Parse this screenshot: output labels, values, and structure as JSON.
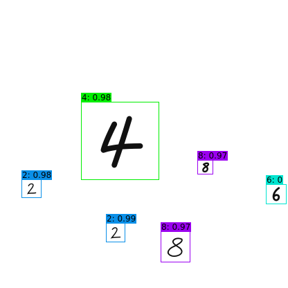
{
  "detections": [
    {
      "class": "4",
      "score": "0.98",
      "label": "4: 0.98",
      "color": "#00ee00"
    },
    {
      "class": "8",
      "score": "0.97",
      "label": "8: 0.97",
      "color": "#9b00f0"
    },
    {
      "class": "6",
      "score": "",
      "label": "6: 0",
      "color": "#00e5d0"
    },
    {
      "class": "2",
      "score": "0.98",
      "label": "2: 0.98",
      "color": "#0a8fe8"
    },
    {
      "class": "2",
      "score": "0.99",
      "label": "2: 0.99",
      "color": "#0a8fe8"
    },
    {
      "class": "8",
      "score": "0.97",
      "label": "8: 0.97",
      "color": "#9b00f0"
    }
  ]
}
